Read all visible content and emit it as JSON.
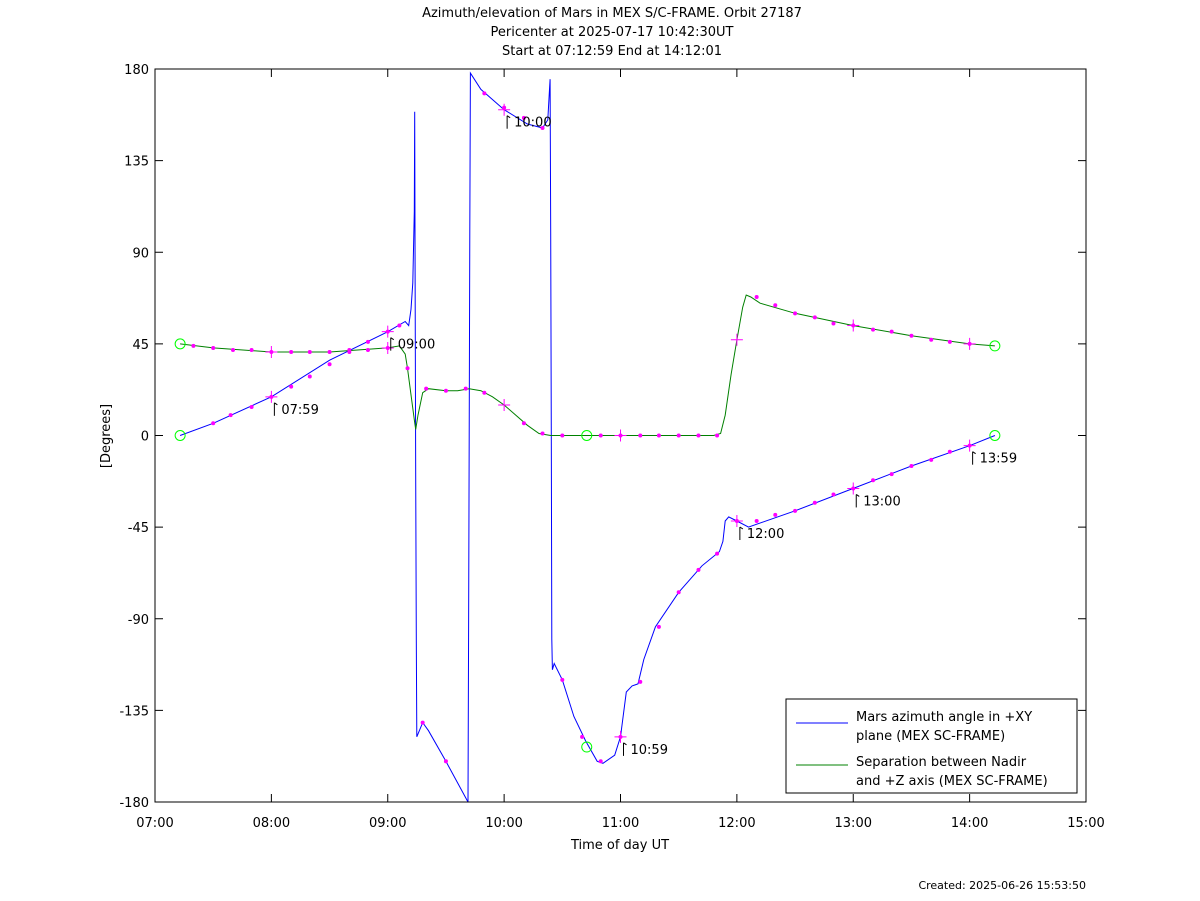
{
  "chart_data": {
    "type": "line",
    "title": "Azimuth/elevation of Mars in MEX S/C-FRAME.  Orbit 27187",
    "subtitle_1": "Pericenter at 2025-07-17 10:42:30UT",
    "subtitle_2": "Start at 07:12:59 End at 14:12:01",
    "xlabel": "Time of day UT",
    "ylabel": "[Degrees]",
    "xlim": [
      7.0,
      15.0
    ],
    "ylim": [
      -180,
      180
    ],
    "x_ticks": [
      {
        "v": 7,
        "label": "07:00"
      },
      {
        "v": 8,
        "label": "08:00"
      },
      {
        "v": 9,
        "label": "09:00"
      },
      {
        "v": 10,
        "label": "10:00"
      },
      {
        "v": 11,
        "label": "11:00"
      },
      {
        "v": 12,
        "label": "12:00"
      },
      {
        "v": 13,
        "label": "13:00"
      },
      {
        "v": 14,
        "label": "14:00"
      },
      {
        "v": 15,
        "label": "15:00"
      }
    ],
    "y_ticks": [
      {
        "v": 180,
        "label": "180"
      },
      {
        "v": 135,
        "label": "135"
      },
      {
        "v": 90,
        "label": "90"
      },
      {
        "v": 45,
        "label": "45"
      },
      {
        "v": 0,
        "label": "0"
      },
      {
        "v": -45,
        "label": "-45"
      },
      {
        "v": -90,
        "label": "-90"
      },
      {
        "v": -135,
        "label": "-135"
      },
      {
        "v": -180,
        "label": "-180"
      }
    ],
    "legend_position": "bottom-right",
    "grid": false,
    "series": [
      {
        "name": "Mars azimuth angle in +XY plane (MEX SC-FRAME)",
        "legend_lines": [
          "Mars azimuth angle in +XY",
          "plane (MEX SC-FRAME)"
        ],
        "color": "#0000ff",
        "points": [
          [
            7.216,
            0
          ],
          [
            7.5,
            6
          ],
          [
            8.0,
            19
          ],
          [
            8.5,
            37
          ],
          [
            9.0,
            51
          ],
          [
            9.15,
            56
          ],
          [
            9.18,
            54
          ],
          [
            9.2,
            62
          ],
          [
            9.215,
            75
          ],
          [
            9.228,
            110
          ],
          [
            9.232,
            159
          ],
          [
            9.235,
            80
          ],
          [
            9.24,
            -20
          ],
          [
            9.245,
            -100
          ],
          [
            9.25,
            -148
          ],
          [
            9.3,
            -141
          ],
          [
            9.35,
            -145
          ],
          [
            9.5,
            -160
          ],
          [
            9.69,
            -180
          ],
          [
            9.695,
            -95
          ],
          [
            9.7,
            0
          ],
          [
            9.705,
            100
          ],
          [
            9.71,
            178
          ],
          [
            9.8,
            170
          ],
          [
            10.0,
            160
          ],
          [
            10.2,
            153
          ],
          [
            10.33,
            151
          ],
          [
            10.375,
            155
          ],
          [
            10.39,
            170
          ],
          [
            10.395,
            175
          ],
          [
            10.4,
            100
          ],
          [
            10.405,
            0
          ],
          [
            10.41,
            -100
          ],
          [
            10.415,
            -115
          ],
          [
            10.43,
            -112
          ],
          [
            10.5,
            -120
          ],
          [
            10.6,
            -138
          ],
          [
            10.7,
            -150
          ],
          [
            10.8,
            -160
          ],
          [
            10.85,
            -161
          ],
          [
            10.95,
            -157
          ],
          [
            11.0,
            -148
          ],
          [
            11.05,
            -126
          ],
          [
            11.1,
            -123
          ],
          [
            11.15,
            -122
          ],
          [
            11.2,
            -110
          ],
          [
            11.3,
            -94
          ],
          [
            11.5,
            -77
          ],
          [
            11.7,
            -64
          ],
          [
            11.85,
            -57
          ],
          [
            11.88,
            -52
          ],
          [
            11.9,
            -42
          ],
          [
            11.93,
            -40
          ],
          [
            12.0,
            -42
          ],
          [
            12.1,
            -45
          ],
          [
            12.5,
            -37
          ],
          [
            13.0,
            -26
          ],
          [
            13.5,
            -15
          ],
          [
            14.0,
            -5
          ],
          [
            14.217,
            0
          ]
        ],
        "markers": [
          [
            7.5,
            6
          ],
          [
            7.65,
            10
          ],
          [
            7.83,
            14
          ],
          [
            8.0,
            19
          ],
          [
            8.17,
            24
          ],
          [
            8.33,
            29
          ],
          [
            8.5,
            35
          ],
          [
            8.67,
            41
          ],
          [
            8.83,
            46
          ],
          [
            9.0,
            51
          ],
          [
            9.1,
            54
          ],
          [
            9.3,
            -141
          ],
          [
            9.5,
            -160
          ],
          [
            9.83,
            168
          ],
          [
            10.0,
            161
          ],
          [
            10.17,
            156
          ],
          [
            10.33,
            151
          ],
          [
            10.5,
            -120
          ],
          [
            10.67,
            -148
          ],
          [
            10.83,
            -160
          ],
          [
            11.0,
            -148
          ],
          [
            11.17,
            -121
          ],
          [
            11.33,
            -94
          ],
          [
            11.5,
            -77
          ],
          [
            11.67,
            -66
          ],
          [
            11.83,
            -58
          ],
          [
            12.0,
            -42
          ],
          [
            12.17,
            -42
          ],
          [
            12.33,
            -39
          ],
          [
            12.5,
            -37
          ],
          [
            12.67,
            -33
          ],
          [
            12.83,
            -29
          ],
          [
            13.0,
            -26
          ],
          [
            13.17,
            -22
          ],
          [
            13.33,
            -19
          ],
          [
            13.5,
            -15
          ],
          [
            13.67,
            -12
          ],
          [
            13.83,
            -8
          ],
          [
            14.0,
            -5
          ]
        ],
        "crosses": [
          [
            8.0,
            19
          ],
          [
            9.0,
            51
          ],
          [
            10.0,
            160
          ],
          [
            11.0,
            -148
          ],
          [
            12.0,
            -42
          ],
          [
            13.0,
            -26
          ],
          [
            14.0,
            -5
          ]
        ],
        "circles": [
          [
            7.216,
            0
          ],
          [
            10.71,
            -153
          ],
          [
            14.217,
            0
          ]
        ]
      },
      {
        "name": "Separation between Nadir and +Z axis (MEX SC-FRAME)",
        "legend_lines": [
          "Separation between Nadir",
          "and +Z axis (MEX SC-FRAME)"
        ],
        "color": "#008000",
        "points": [
          [
            7.216,
            45
          ],
          [
            7.5,
            43
          ],
          [
            8.0,
            41
          ],
          [
            8.5,
            41
          ],
          [
            9.0,
            43
          ],
          [
            9.1,
            44
          ],
          [
            9.15,
            40
          ],
          [
            9.17,
            33
          ],
          [
            9.2,
            20
          ],
          [
            9.23,
            7
          ],
          [
            9.24,
            3
          ],
          [
            9.26,
            10
          ],
          [
            9.3,
            21
          ],
          [
            9.35,
            23
          ],
          [
            9.5,
            22
          ],
          [
            9.6,
            22
          ],
          [
            9.7,
            23
          ],
          [
            9.8,
            22
          ],
          [
            9.9,
            19
          ],
          [
            10.0,
            15
          ],
          [
            10.2,
            5
          ],
          [
            10.3,
            1
          ],
          [
            10.4,
            0
          ],
          [
            10.5,
            0
          ],
          [
            11.0,
            0
          ],
          [
            11.5,
            0
          ],
          [
            11.8,
            0
          ],
          [
            11.86,
            1
          ],
          [
            11.9,
            10
          ],
          [
            11.95,
            30
          ],
          [
            12.0,
            47
          ],
          [
            12.05,
            63
          ],
          [
            12.08,
            69
          ],
          [
            12.12,
            68
          ],
          [
            12.2,
            65
          ],
          [
            12.5,
            60
          ],
          [
            13.0,
            54
          ],
          [
            13.5,
            49
          ],
          [
            14.0,
            45
          ],
          [
            14.217,
            44
          ]
        ],
        "markers": [
          [
            7.33,
            44
          ],
          [
            7.5,
            43
          ],
          [
            7.67,
            42
          ],
          [
            7.83,
            42
          ],
          [
            8.0,
            41
          ],
          [
            8.17,
            41
          ],
          [
            8.33,
            41
          ],
          [
            8.5,
            41
          ],
          [
            8.67,
            42
          ],
          [
            8.83,
            42
          ],
          [
            9.0,
            43
          ],
          [
            9.17,
            33
          ],
          [
            9.33,
            23
          ],
          [
            9.5,
            22
          ],
          [
            9.67,
            23
          ],
          [
            9.83,
            21
          ],
          [
            10.17,
            6
          ],
          [
            10.33,
            1
          ],
          [
            10.5,
            0
          ],
          [
            10.83,
            0
          ],
          [
            11.0,
            0
          ],
          [
            11.17,
            0
          ],
          [
            11.33,
            0
          ],
          [
            11.5,
            0
          ],
          [
            11.67,
            0
          ],
          [
            11.83,
            0
          ],
          [
            12.17,
            68
          ],
          [
            12.33,
            64
          ],
          [
            12.5,
            60
          ],
          [
            12.67,
            58
          ],
          [
            12.83,
            55
          ],
          [
            13.0,
            54
          ],
          [
            13.17,
            52
          ],
          [
            13.33,
            51
          ],
          [
            13.5,
            49
          ],
          [
            13.67,
            47
          ],
          [
            13.83,
            46
          ],
          [
            14.0,
            45
          ]
        ],
        "crosses": [
          [
            8.0,
            41
          ],
          [
            9.0,
            43
          ],
          [
            10.0,
            15
          ],
          [
            11.0,
            0
          ],
          [
            12.0,
            47
          ],
          [
            13.0,
            54
          ],
          [
            14.0,
            45
          ]
        ],
        "circles": [
          [
            7.216,
            45
          ],
          [
            10.71,
            0
          ],
          [
            14.217,
            44
          ]
        ]
      }
    ],
    "annotations": [
      {
        "x": 8.0,
        "y": 19,
        "label": "07:59",
        "below": true
      },
      {
        "x": 9.0,
        "y": 51,
        "label": "09:00",
        "below": true
      },
      {
        "x": 10.0,
        "y": 160,
        "label": "10:00",
        "below": true
      },
      {
        "x": 11.0,
        "y": -148,
        "label": "10:59",
        "below": true
      },
      {
        "x": 12.0,
        "y": -42,
        "label": "12:00",
        "below": true
      },
      {
        "x": 13.0,
        "y": -26,
        "label": "13:00",
        "below": true
      },
      {
        "x": 14.0,
        "y": -5,
        "label": "13:59",
        "below": true
      }
    ],
    "colors": {
      "marker": "#ff00ff",
      "circle": "#00ff00",
      "axes": "#000000"
    }
  },
  "footer": {
    "created": "Created: 2025-06-26 15:53:50"
  }
}
